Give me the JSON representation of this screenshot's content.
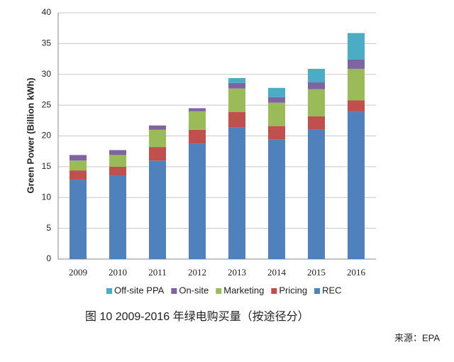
{
  "chart_data": {
    "type": "stacked-bar",
    "y_label": "Green Power (Billion kWh)",
    "caption": "图 10 2009-2016 年绿电购买量（按途径分）",
    "source": "来源：EPA",
    "categories": [
      "2009",
      "2010",
      "2011",
      "2012",
      "2013",
      "2014",
      "2015",
      "2016"
    ],
    "series": [
      {
        "name": "REC",
        "color": "#4f81bd",
        "values": [
          12.9,
          13.5,
          16.0,
          18.7,
          21.4,
          19.4,
          21.0,
          23.9
        ]
      },
      {
        "name": "Pricing",
        "color": "#c0504d",
        "values": [
          1.5,
          1.5,
          2.2,
          2.3,
          2.5,
          2.2,
          2.2,
          1.9
        ]
      },
      {
        "name": "Marketing",
        "color": "#9bbb59",
        "values": [
          1.6,
          1.9,
          2.8,
          3.0,
          3.8,
          3.8,
          4.4,
          5.1
        ]
      },
      {
        "name": "On-site",
        "color": "#8064a2",
        "values": [
          0.9,
          0.8,
          0.7,
          0.5,
          0.9,
          0.9,
          1.1,
          1.5
        ]
      },
      {
        "name": "Off-site PPA",
        "color": "#4bacc6",
        "values": [
          0,
          0,
          0,
          0,
          0.8,
          1.5,
          2.2,
          4.3
        ]
      }
    ],
    "ylim": [
      0,
      40
    ],
    "yticks": [
      0,
      5,
      10,
      15,
      20,
      25,
      30,
      35,
      40
    ],
    "grid": true,
    "legend": "bottom"
  }
}
